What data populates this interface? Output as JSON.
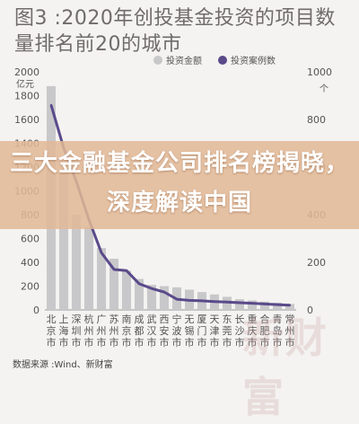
{
  "page_title": "图3 :2020年创投基金投资的项目数量排名前20的城市",
  "headline": "三大金融基金公司排名榜揭晓，深度解读中国",
  "source": "数据来源 :Wind、新财富",
  "watermark": "新财富",
  "colors": {
    "bar": "#c8c8ca",
    "line": "#5a4a8a",
    "axis_text": "#555555",
    "banner": "#e2b896"
  },
  "chart_data": {
    "type": "bar",
    "categories": [
      "北京市",
      "上海市",
      "深圳市",
      "杭州市",
      "广州市",
      "苏州市",
      "南京市",
      "成都市",
      "武汉市",
      "西安市",
      "宁波市",
      "无锡市",
      "厦门市",
      "天津市",
      "东莞市",
      "长沙市",
      "重庆市",
      "合肥市",
      "青岛市",
      "常州市"
    ],
    "series": [
      {
        "name": "投资金额",
        "axis": "left",
        "type": "bar",
        "values": [
          1880,
          1160,
          800,
          700,
          520,
          430,
          330,
          260,
          210,
          200,
          190,
          170,
          150,
          130,
          110,
          90,
          80,
          70,
          60,
          50
        ]
      },
      {
        "name": "投资案例数",
        "axis": "right",
        "type": "line",
        "values": [
          860,
          680,
          540,
          380,
          240,
          170,
          165,
          110,
          90,
          75,
          45,
          40,
          38,
          35,
          33,
          30,
          28,
          25,
          22,
          20
        ]
      }
    ],
    "y_left": {
      "unit": "亿元",
      "ticks": [
        0,
        200,
        400,
        600,
        800,
        1000,
        1200,
        1400,
        1600,
        1800,
        2000
      ],
      "lim": [
        0,
        2000
      ]
    },
    "y_right": {
      "unit": "个",
      "ticks": [
        0,
        200,
        400,
        600,
        800,
        1000
      ],
      "lim": [
        0,
        1000
      ]
    },
    "legend": [
      "投资金额",
      "投资案例数"
    ],
    "legend_position": "top-right"
  }
}
